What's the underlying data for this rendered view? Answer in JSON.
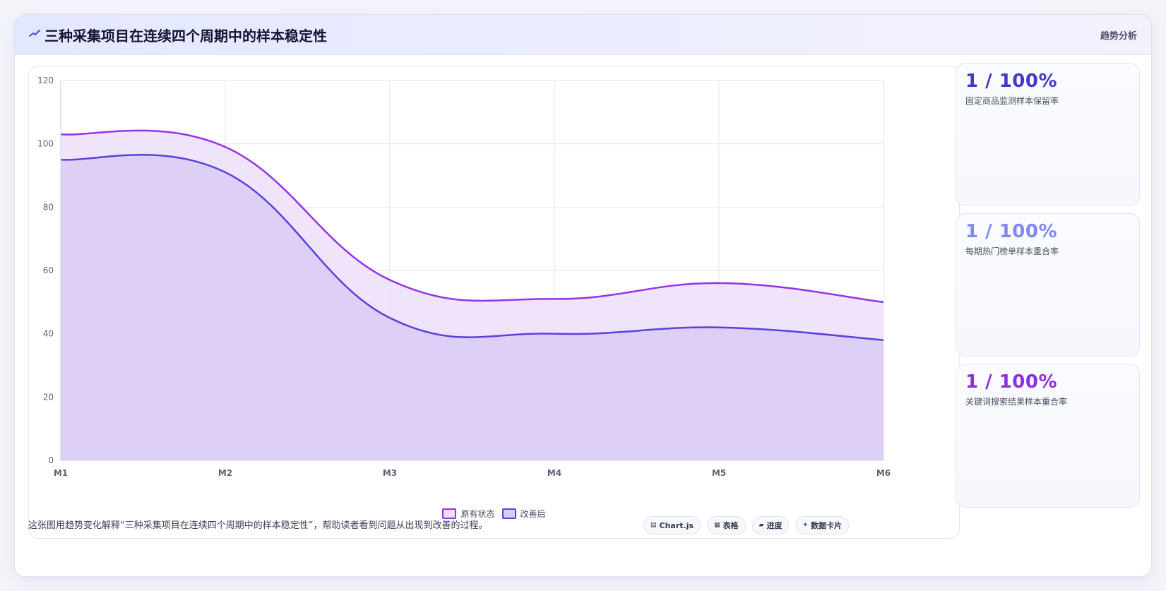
{
  "header": {
    "icon": "trend-line-icon",
    "title": "三种采集项目在连续四个周期中的样本稳定性",
    "tag": "趋势分析"
  },
  "chart_data": {
    "type": "area",
    "x": [
      "M1",
      "M2",
      "M3",
      "M4",
      "M5",
      "M6"
    ],
    "ylim": [
      0,
      120
    ],
    "yticks": [
      "0",
      "20",
      "40",
      "60",
      "80",
      "100",
      "120"
    ],
    "grid": true,
    "legend_position": "bottom",
    "series": [
      {
        "name": "原有状态",
        "values": [
          103,
          99,
          57,
          51,
          56,
          50
        ],
        "color": "#9333ea",
        "fill": "#eddffa"
      },
      {
        "name": "改善后",
        "values": [
          95,
          91,
          45,
          40,
          42,
          38
        ],
        "color": "#5b41db",
        "fill": "#dbcbf6"
      }
    ]
  },
  "stats": [
    {
      "value": "1 / 100%",
      "label": "固定商品监测样本保留率",
      "color": "#4338ca"
    },
    {
      "value": "1 / 100%",
      "label": "每期热门榜单样本重合率",
      "color": "#8189ee"
    },
    {
      "value": "1 / 100%",
      "label": "关键词搜索结果样本重合率",
      "color": "#8b2fdc"
    }
  ],
  "footnote": "这张图用趋势变化解释“三种采集项目在连续四个周期中的样本稳定性”，帮助读者看到问题从出现到改善的过程。",
  "chips": [
    {
      "icon": "chart-icon",
      "glyph": "▤",
      "label": "Chart.js"
    },
    {
      "icon": "table-icon",
      "glyph": "▦",
      "label": "表格"
    },
    {
      "icon": "progress-icon",
      "glyph": "▰",
      "label": "进度"
    },
    {
      "icon": "sparkle-icon",
      "glyph": "✦",
      "label": "数据卡片"
    }
  ]
}
